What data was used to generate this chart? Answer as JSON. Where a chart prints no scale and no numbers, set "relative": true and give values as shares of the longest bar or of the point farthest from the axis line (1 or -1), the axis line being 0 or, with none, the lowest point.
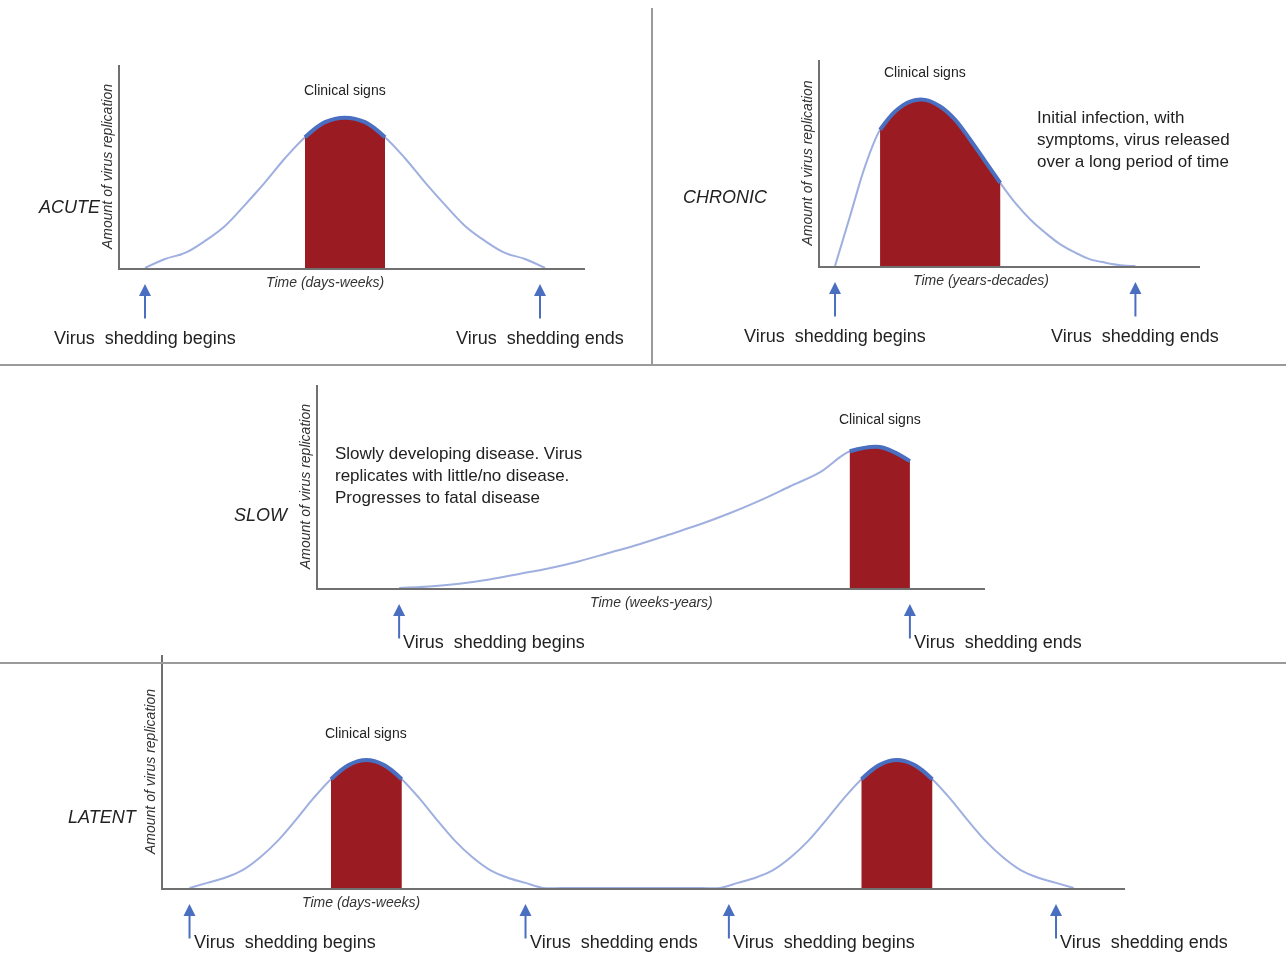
{
  "chart_data": [
    {
      "type": "line",
      "title": "ACUTE",
      "xlabel": "Time (days-weeks)",
      "ylabel": "Amount of virus replication",
      "relative": true,
      "legend": false,
      "tick_labels": false,
      "categories": [
        null,
        null,
        null,
        null,
        null,
        null,
        null,
        null,
        null,
        null,
        null,
        null,
        null,
        null,
        null,
        null,
        null,
        null,
        null,
        null,
        null
      ],
      "series": [
        {
          "color": "#9fb0e0",
          "values": [
            0,
            0.06,
            0.1,
            0.18,
            0.28,
            0.42,
            0.57,
            0.73,
            0.87,
            0.97,
            1,
            0.97,
            0.87,
            0.73,
            0.57,
            0.42,
            0.28,
            0.18,
            0.1,
            0.06,
            0
          ]
        },
        {
          "type": "area",
          "color": "#9b1b22",
          "values": [
            null,
            null,
            null,
            null,
            null,
            null,
            null,
            null,
            0.87,
            0.97,
            1,
            0.97,
            0.87,
            null,
            null,
            null,
            null,
            null,
            null,
            null,
            null
          ]
        },
        {
          "type": "line",
          "color": "#4a6fc1",
          "values": [
            null,
            null,
            null,
            null,
            null,
            null,
            null,
            null,
            0.87,
            0.97,
            1,
            0.97,
            0.87,
            null,
            null,
            null,
            null,
            null,
            null,
            null,
            null
          ]
        }
      ],
      "annotations": [
        "Clinical signs",
        "Virus  shedding begins",
        "Virus  shedding ends"
      ]
    },
    {
      "type": "line",
      "title": "CHRONIC",
      "xlabel": "Time (years-decades)",
      "ylabel": "Amount of virus replication",
      "relative": true,
      "legend": false,
      "tick_labels": false,
      "categories": [
        null,
        null,
        null,
        null,
        null,
        null,
        null,
        null,
        null,
        null,
        null,
        null,
        null,
        null,
        null,
        null,
        null,
        null,
        null,
        null,
        null
      ],
      "series": [
        {
          "color": "#9fb0e0",
          "values": [
            0,
            0.3,
            0.6,
            0.82,
            0.93,
            0.99,
            1,
            0.96,
            0.88,
            0.76,
            0.63,
            0.5,
            0.38,
            0.28,
            0.2,
            0.13,
            0.08,
            0.04,
            0.02,
            0.005,
            0
          ]
        },
        {
          "type": "area",
          "color": "#9b1b22",
          "values": [
            null,
            null,
            null,
            0.82,
            0.93,
            0.99,
            1,
            0.96,
            0.88,
            0.76,
            0.63,
            0.5,
            null,
            null,
            null,
            null,
            null,
            null,
            null,
            null,
            null
          ]
        },
        {
          "type": "line",
          "color": "#4a6fc1",
          "values": [
            null,
            null,
            null,
            0.82,
            0.93,
            0.99,
            1,
            0.96,
            0.88,
            0.76,
            0.63,
            0.5,
            null,
            null,
            null,
            null,
            null,
            null,
            null,
            null,
            null
          ]
        }
      ],
      "annotations": [
        "Clinical signs",
        "Initial infection, with\nsymptoms, virus released\nover a long period of time",
        "Virus  shedding begins",
        "Virus  shedding ends"
      ]
    },
    {
      "type": "line",
      "title": "SLOW",
      "xlabel": "Time (weeks-years)",
      "ylabel": "Amount of virus replication",
      "relative": true,
      "legend": false,
      "tick_labels": false,
      "categories": [
        null,
        null,
        null,
        null,
        null,
        null,
        null,
        null,
        null,
        null,
        null,
        null,
        null,
        null,
        null,
        null,
        null,
        null
      ],
      "series": [
        {
          "color": "#9fb0e0",
          "values": [
            0,
            0.01,
            0.03,
            0.06,
            0.1,
            0.14,
            0.19,
            0.25,
            0.31,
            0.38,
            0.45,
            0.53,
            0.62,
            0.72,
            0.82,
            0.97,
            1,
            0.9
          ]
        },
        {
          "type": "area",
          "color": "#9b1b22",
          "values": [
            null,
            null,
            null,
            null,
            null,
            null,
            null,
            null,
            null,
            null,
            null,
            null,
            null,
            null,
            null,
            0.97,
            1,
            0.9
          ]
        },
        {
          "type": "line",
          "color": "#4a6fc1",
          "values": [
            null,
            null,
            null,
            null,
            null,
            null,
            null,
            null,
            null,
            null,
            null,
            null,
            null,
            null,
            null,
            0.97,
            1,
            0.9
          ]
        }
      ],
      "annotations": [
        "Clinical signs",
        "Slowly developing disease. Virus\nreplicates with little/no disease.\nProgresses to fatal disease",
        "Virus  shedding begins",
        "Virus  shedding ends"
      ]
    },
    {
      "type": "line",
      "title": "LATENT",
      "xlabel": "Time (days-weeks)",
      "ylabel": "Amount of virus replication",
      "relative": true,
      "legend": false,
      "tick_labels": false,
      "categories": [
        null,
        null,
        null,
        null,
        null,
        null,
        null,
        null,
        null,
        null,
        null,
        null,
        null,
        null,
        null,
        null,
        null,
        null,
        null,
        null,
        null,
        null,
        null,
        null,
        null,
        null,
        null,
        null,
        null,
        null,
        null,
        null,
        null,
        null,
        null,
        null,
        null,
        null,
        null,
        null,
        null,
        null,
        null,
        null,
        null,
        null,
        null,
        null,
        null,
        null,
        null
      ],
      "series": [
        {
          "color": "#9fb0e0",
          "values": [
            0,
            0.04,
            0.08,
            0.14,
            0.24,
            0.37,
            0.53,
            0.7,
            0.85,
            0.96,
            1,
            0.96,
            0.85,
            0.7,
            0.53,
            0.37,
            0.24,
            0.14,
            0.08,
            0.04,
            0,
            0,
            0,
            0,
            0,
            0,
            0,
            0,
            0,
            0,
            0,
            0.04,
            0.08,
            0.14,
            0.24,
            0.37,
            0.53,
            0.7,
            0.85,
            0.96,
            1,
            0.96,
            0.85,
            0.7,
            0.53,
            0.37,
            0.24,
            0.14,
            0.08,
            0.04,
            0
          ]
        },
        {
          "type": "area",
          "color": "#9b1b22",
          "values": [
            null,
            null,
            null,
            null,
            null,
            null,
            null,
            null,
            0.85,
            0.96,
            1,
            0.96,
            0.85,
            null,
            null,
            null,
            null,
            null,
            null,
            null,
            null,
            null,
            null,
            null,
            null,
            null,
            null,
            null,
            null,
            null,
            null,
            null,
            null,
            null,
            null,
            null,
            null,
            null,
            0.85,
            0.96,
            1,
            0.96,
            0.85,
            null,
            null,
            null,
            null,
            null,
            null,
            null,
            null
          ]
        },
        {
          "type": "line",
          "color": "#4a6fc1",
          "values": [
            null,
            null,
            null,
            null,
            null,
            null,
            null,
            null,
            0.85,
            0.96,
            1,
            0.96,
            0.85,
            null,
            null,
            null,
            null,
            null,
            null,
            null,
            null,
            null,
            null,
            null,
            null,
            null,
            null,
            null,
            null,
            null,
            null,
            null,
            null,
            null,
            null,
            null,
            null,
            null,
            0.85,
            0.96,
            1,
            0.96,
            0.85,
            null,
            null,
            null,
            null,
            null,
            null,
            null,
            null
          ]
        }
      ],
      "annotations": [
        "Clinical signs",
        "Virus  shedding begins",
        "Virus  shedding ends",
        "Virus  shedding begins",
        "Virus  shedding ends"
      ]
    }
  ]
}
